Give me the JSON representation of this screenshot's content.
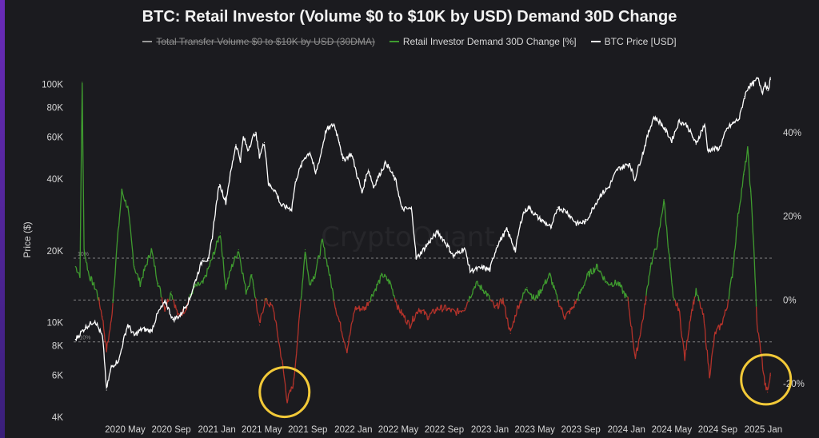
{
  "chart_data": {
    "type": "line",
    "title": "BTC: Retail Investor (Volume $0 to $10K by USD) Demand 30D Change",
    "watermark": "CryptoQuant",
    "legend": [
      {
        "name": "Total Transfer Volume  $0 to $10K by USD (30DMA)",
        "color": "#9a9a9a",
        "hidden": true
      },
      {
        "name": "Retail Investor Demand 30D Change [%]",
        "color": "#3f9b2f",
        "hidden": false
      },
      {
        "name": "BTC Price [USD]",
        "color": "#ffffff",
        "hidden": false
      }
    ],
    "legend_placement": "top-center",
    "y_left": {
      "label": "Price ($)",
      "scale": "log",
      "range": [
        4000,
        120000
      ],
      "ticks": [
        {
          "value": 100000,
          "label": "100K"
        },
        {
          "value": 80000,
          "label": "80K"
        },
        {
          "value": 60000,
          "label": "60K"
        },
        {
          "value": 40000,
          "label": "40K"
        },
        {
          "value": 20000,
          "label": "20K"
        },
        {
          "value": 10000,
          "label": "10K"
        },
        {
          "value": 8000,
          "label": "8K"
        },
        {
          "value": 6000,
          "label": "6K"
        },
        {
          "value": 4000,
          "label": "4K"
        }
      ]
    },
    "y_right": {
      "range": [
        -28,
        56
      ],
      "ticks": [
        {
          "value": 40,
          "label": "40%"
        },
        {
          "value": 20,
          "label": "20%"
        },
        {
          "value": 0,
          "label": "0%"
        },
        {
          "value": -20,
          "label": "-20%"
        }
      ]
    },
    "x_axis": {
      "range": [
        "2019-12-15",
        "2025-01-30"
      ],
      "ticks": [
        {
          "date": "2020-05-01",
          "label": "2020 May"
        },
        {
          "date": "2020-09-01",
          "label": "2020 Sep"
        },
        {
          "date": "2021-01-01",
          "label": "2021 Jan"
        },
        {
          "date": "2021-05-01",
          "label": "2021 May"
        },
        {
          "date": "2021-09-01",
          "label": "2021 Sep"
        },
        {
          "date": "2022-01-01",
          "label": "2022 Jan"
        },
        {
          "date": "2022-05-01",
          "label": "2022 May"
        },
        {
          "date": "2022-09-01",
          "label": "2022 Sep"
        },
        {
          "date": "2023-01-01",
          "label": "2023 Jan"
        },
        {
          "date": "2023-05-01",
          "label": "2023 May"
        },
        {
          "date": "2023-09-01",
          "label": "2023 Sep"
        },
        {
          "date": "2024-01-01",
          "label": "2024 Jan"
        },
        {
          "date": "2024-05-01",
          "label": "2024 May"
        },
        {
          "date": "2024-09-01",
          "label": "2024 Sep"
        },
        {
          "date": "2025-01-01",
          "label": "2025 Jan"
        }
      ]
    },
    "reference_lines": [
      {
        "value": 10,
        "label": "10%"
      },
      {
        "value": 0,
        "label": ""
      },
      {
        "value": -10,
        "label": "-10%"
      }
    ],
    "series": [
      {
        "name": "BTC Price [USD]",
        "axis": "left",
        "color": "#ffffff",
        "points": [
          [
            "2019-12-20",
            8500
          ],
          [
            "2020-01-15",
            9500
          ],
          [
            "2020-02-10",
            10200
          ],
          [
            "2020-03-01",
            8700
          ],
          [
            "2020-03-12",
            5200
          ],
          [
            "2020-03-25",
            6500
          ],
          [
            "2020-04-15",
            7000
          ],
          [
            "2020-05-08",
            9800
          ],
          [
            "2020-05-25",
            8800
          ],
          [
            "2020-06-15",
            9400
          ],
          [
            "2020-07-10",
            9200
          ],
          [
            "2020-07-28",
            11000
          ],
          [
            "2020-08-17",
            12200
          ],
          [
            "2020-09-05",
            10300
          ],
          [
            "2020-09-25",
            10700
          ],
          [
            "2020-10-20",
            12500
          ],
          [
            "2020-11-05",
            15000
          ],
          [
            "2020-11-25",
            18500
          ],
          [
            "2020-12-10",
            18200
          ],
          [
            "2020-12-20",
            23000
          ],
          [
            "2021-01-08",
            38000
          ],
          [
            "2021-01-25",
            32000
          ],
          [
            "2021-02-10",
            45000
          ],
          [
            "2021-02-21",
            56000
          ],
          [
            "2021-03-05",
            48000
          ],
          [
            "2021-03-13",
            60000
          ],
          [
            "2021-03-25",
            53000
          ],
          [
            "2021-04-14",
            63000
          ],
          [
            "2021-04-25",
            50000
          ],
          [
            "2021-05-08",
            57000
          ],
          [
            "2021-05-19",
            38000
          ],
          [
            "2021-06-05",
            36000
          ],
          [
            "2021-06-22",
            31000
          ],
          [
            "2021-07-20",
            30000
          ],
          [
            "2021-08-01",
            40000
          ],
          [
            "2021-08-23",
            49000
          ],
          [
            "2021-09-07",
            52000
          ],
          [
            "2021-09-22",
            42000
          ],
          [
            "2021-10-05",
            50000
          ],
          [
            "2021-10-20",
            64000
          ],
          [
            "2021-11-10",
            68000
          ],
          [
            "2021-11-25",
            57000
          ],
          [
            "2021-12-04",
            48000
          ],
          [
            "2021-12-27",
            51000
          ],
          [
            "2022-01-10",
            42000
          ],
          [
            "2022-01-24",
            35000
          ],
          [
            "2022-02-10",
            44000
          ],
          [
            "2022-02-24",
            37000
          ],
          [
            "2022-03-29",
            47000
          ],
          [
            "2022-04-25",
            39000
          ],
          [
            "2022-05-10",
            30000
          ],
          [
            "2022-06-05",
            30000
          ],
          [
            "2022-06-18",
            18500
          ],
          [
            "2022-07-10",
            20500
          ],
          [
            "2022-08-14",
            24000
          ],
          [
            "2022-09-10",
            21000
          ],
          [
            "2022-09-25",
            19000
          ],
          [
            "2022-10-25",
            20500
          ],
          [
            "2022-11-09",
            16500
          ],
          [
            "2022-12-15",
            17000
          ],
          [
            "2023-01-01",
            16600
          ],
          [
            "2023-01-20",
            21000
          ],
          [
            "2023-02-15",
            24500
          ],
          [
            "2023-03-10",
            20000
          ],
          [
            "2023-03-30",
            28500
          ],
          [
            "2023-04-14",
            30500
          ],
          [
            "2023-05-10",
            27500
          ],
          [
            "2023-06-15",
            25000
          ],
          [
            "2023-07-01",
            30500
          ],
          [
            "2023-07-25",
            29200
          ],
          [
            "2023-08-20",
            26000
          ],
          [
            "2023-09-15",
            26500
          ],
          [
            "2023-10-25",
            34500
          ],
          [
            "2023-11-15",
            37000
          ],
          [
            "2023-12-08",
            44000
          ],
          [
            "2024-01-10",
            46500
          ],
          [
            "2024-01-23",
            39500
          ],
          [
            "2024-02-15",
            52000
          ],
          [
            "2024-03-14",
            73000
          ],
          [
            "2024-04-01",
            69000
          ],
          [
            "2024-05-01",
            58000
          ],
          [
            "2024-05-21",
            70000
          ],
          [
            "2024-06-10",
            67500
          ],
          [
            "2024-07-05",
            56000
          ],
          [
            "2024-07-28",
            68000
          ],
          [
            "2024-08-05",
            53000
          ],
          [
            "2024-09-06",
            54000
          ],
          [
            "2024-09-27",
            65500
          ],
          [
            "2024-10-29",
            72000
          ],
          [
            "2024-11-12",
            89000
          ],
          [
            "2024-11-22",
            98000
          ],
          [
            "2024-12-05",
            100500
          ],
          [
            "2024-12-17",
            106000
          ],
          [
            "2024-12-30",
            93000
          ],
          [
            "2025-01-06",
            102000
          ],
          [
            "2025-01-13",
            94000
          ],
          [
            "2025-01-20",
            105000
          ]
        ]
      },
      {
        "name": "Retail Investor Demand 30D Change [%]",
        "axis": "right",
        "color_positive": "#3f9b2f",
        "color_negative": "#b3322a",
        "points": [
          [
            "2019-12-20",
            8
          ],
          [
            "2020-01-01",
            6
          ],
          [
            "2020-01-07",
            52
          ],
          [
            "2020-01-12",
            12
          ],
          [
            "2020-01-25",
            6
          ],
          [
            "2020-02-15",
            2
          ],
          [
            "2020-03-01",
            -4
          ],
          [
            "2020-03-12",
            -12
          ],
          [
            "2020-03-25",
            -5
          ],
          [
            "2020-04-10",
            14
          ],
          [
            "2020-04-22",
            26
          ],
          [
            "2020-05-08",
            22
          ],
          [
            "2020-05-25",
            8
          ],
          [
            "2020-06-10",
            4
          ],
          [
            "2020-06-25",
            8
          ],
          [
            "2020-07-10",
            12
          ],
          [
            "2020-07-28",
            4
          ],
          [
            "2020-08-15",
            -2
          ],
          [
            "2020-09-01",
            2
          ],
          [
            "2020-09-20",
            -4
          ],
          [
            "2020-10-10",
            -2
          ],
          [
            "2020-11-01",
            3
          ],
          [
            "2020-11-25",
            4
          ],
          [
            "2020-12-20",
            10
          ],
          [
            "2021-01-10",
            16
          ],
          [
            "2021-01-25",
            3
          ],
          [
            "2021-02-10",
            8
          ],
          [
            "2021-02-28",
            12
          ],
          [
            "2021-03-20",
            2
          ],
          [
            "2021-04-05",
            6
          ],
          [
            "2021-04-25",
            -6
          ],
          [
            "2021-05-10",
            0
          ],
          [
            "2021-06-01",
            -2
          ],
          [
            "2021-06-25",
            -15
          ],
          [
            "2021-07-08",
            -24
          ],
          [
            "2021-07-25",
            -20
          ],
          [
            "2021-08-10",
            -4
          ],
          [
            "2021-08-25",
            12
          ],
          [
            "2021-09-05",
            4
          ],
          [
            "2021-09-20",
            6
          ],
          [
            "2021-10-10",
            14
          ],
          [
            "2021-10-25",
            8
          ],
          [
            "2021-11-15",
            -2
          ],
          [
            "2021-12-15",
            -12
          ],
          [
            "2022-01-05",
            -2
          ],
          [
            "2022-02-01",
            -2
          ],
          [
            "2022-02-25",
            2
          ],
          [
            "2022-03-20",
            6
          ],
          [
            "2022-04-10",
            4
          ],
          [
            "2022-05-01",
            -2
          ],
          [
            "2022-06-01",
            -6
          ],
          [
            "2022-06-25",
            -2
          ],
          [
            "2022-07-20",
            -4
          ],
          [
            "2022-08-15",
            -2
          ],
          [
            "2022-09-05",
            -2
          ],
          [
            "2022-10-01",
            -3
          ],
          [
            "2022-10-25",
            -2
          ],
          [
            "2022-11-25",
            4
          ],
          [
            "2022-12-20",
            2
          ],
          [
            "2023-01-15",
            -2
          ],
          [
            "2023-02-05",
            0
          ],
          [
            "2023-02-25",
            -8
          ],
          [
            "2023-03-15",
            -2
          ],
          [
            "2023-04-10",
            3
          ],
          [
            "2023-05-01",
            0
          ],
          [
            "2023-05-15",
            2
          ],
          [
            "2023-06-10",
            6
          ],
          [
            "2023-07-01",
            0
          ],
          [
            "2023-07-20",
            -4
          ],
          [
            "2023-08-10",
            -2
          ],
          [
            "2023-09-01",
            2
          ],
          [
            "2023-09-20",
            6
          ],
          [
            "2023-10-15",
            8
          ],
          [
            "2023-11-10",
            4
          ],
          [
            "2023-12-10",
            4
          ],
          [
            "2024-01-05",
            0
          ],
          [
            "2024-01-25",
            -14
          ],
          [
            "2024-02-15",
            -4
          ],
          [
            "2024-03-05",
            8
          ],
          [
            "2024-03-25",
            14
          ],
          [
            "2024-04-10",
            24
          ],
          [
            "2024-04-25",
            10
          ],
          [
            "2024-05-05",
            0
          ],
          [
            "2024-05-20",
            -2
          ],
          [
            "2024-06-05",
            -14
          ],
          [
            "2024-06-20",
            -4
          ],
          [
            "2024-07-05",
            2
          ],
          [
            "2024-07-25",
            -4
          ],
          [
            "2024-08-10",
            -18
          ],
          [
            "2024-08-25",
            -8
          ],
          [
            "2024-09-10",
            -6
          ],
          [
            "2024-09-25",
            -2
          ],
          [
            "2024-10-10",
            6
          ],
          [
            "2024-10-25",
            20
          ],
          [
            "2024-11-10",
            30
          ],
          [
            "2024-11-20",
            36
          ],
          [
            "2024-11-28",
            26
          ],
          [
            "2024-12-06",
            14
          ],
          [
            "2024-12-15",
            -6
          ],
          [
            "2024-12-25",
            -12
          ],
          [
            "2025-01-05",
            -20
          ],
          [
            "2025-01-12",
            -22
          ],
          [
            "2025-01-20",
            -18
          ]
        ]
      }
    ],
    "annotations": [
      {
        "type": "circle",
        "date": "2021-07-01",
        "value": -22,
        "color": "#f2c938"
      },
      {
        "type": "circle",
        "date": "2025-01-08",
        "value": -19,
        "color": "#f2c938"
      }
    ],
    "grid": false
  }
}
